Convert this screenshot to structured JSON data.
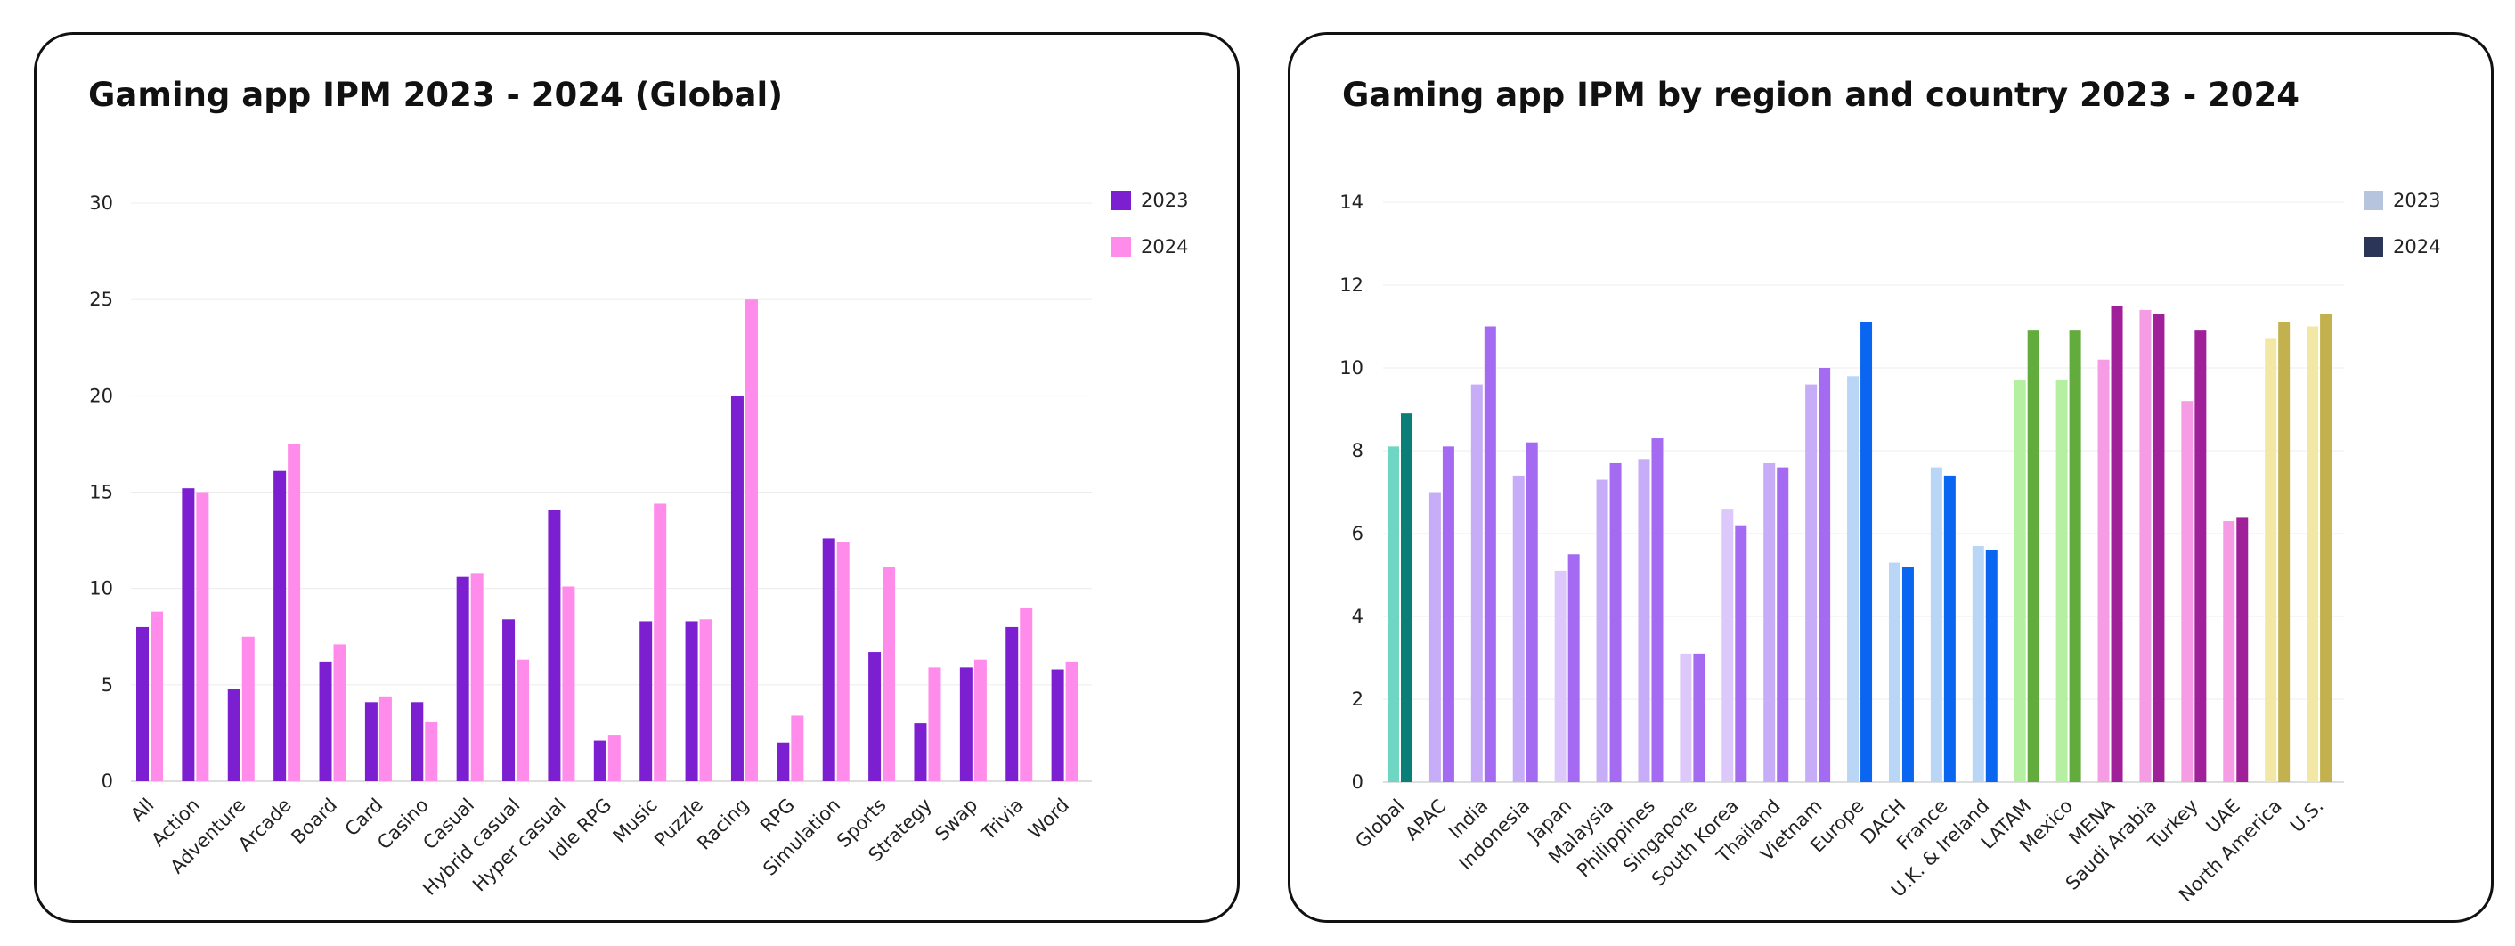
{
  "chart_data": [
    {
      "type": "bar",
      "title": "Gaming app IPM 2023 - 2024 (Global)",
      "xlabel": "",
      "ylabel": "",
      "ylim": [
        0,
        30
      ],
      "yticks": [
        0,
        5,
        10,
        15,
        20,
        25,
        30
      ],
      "grid": true,
      "legend_position": "top-right",
      "categories": [
        "All",
        "Action",
        "Adventure",
        "Arcade",
        "Board",
        "Card",
        "Casino",
        "Casual",
        "Hybrid casual",
        "Hyper casual",
        "Idle RPG",
        "Music",
        "Puzzle",
        "Racing",
        "RPG",
        "Simulation",
        "Sports",
        "Strategy",
        "Swap",
        "Trivia",
        "Word"
      ],
      "series": [
        {
          "name": "2023",
          "color": "#7B1FD1",
          "values": [
            8.0,
            15.2,
            4.8,
            16.1,
            6.2,
            4.1,
            4.1,
            10.6,
            8.4,
            14.1,
            2.1,
            8.3,
            8.3,
            20.0,
            2.0,
            12.6,
            6.7,
            3.0,
            5.9,
            8.0,
            5.8
          ]
        },
        {
          "name": "2024",
          "color": "#FF8BEA",
          "values": [
            8.8,
            15.0,
            7.5,
            17.5,
            7.1,
            4.4,
            3.1,
            10.8,
            6.3,
            10.1,
            2.4,
            14.4,
            8.4,
            25.0,
            3.4,
            12.4,
            11.1,
            5.9,
            6.3,
            9.0,
            6.2
          ]
        }
      ]
    },
    {
      "type": "bar",
      "title": "Gaming app IPM by region and country  2023 - 2024",
      "xlabel": "",
      "ylabel": "",
      "ylim": [
        0,
        14
      ],
      "yticks": [
        0,
        2,
        4,
        6,
        8,
        10,
        12,
        14
      ],
      "grid": true,
      "legend_position": "top-right",
      "legend": [
        {
          "name": "2023",
          "color": "#B7C4DE"
        },
        {
          "name": "2024",
          "color": "#2B3558"
        }
      ],
      "categories": [
        "Global",
        "APAC",
        "India",
        "Indonesia",
        "Japan",
        "Malaysia",
        "Philippines",
        "Singapore",
        "South Korea",
        "Thailand",
        "Vietnam",
        "Europe",
        "DACH",
        "France",
        "U.K. & Ireland",
        "LATAM",
        "Mexico",
        "MENA",
        "Saudi Arabia",
        "Turkey",
        "UAE",
        "North America",
        "U.S."
      ],
      "series": [
        {
          "name": "2023",
          "values": [
            8.1,
            7.0,
            9.6,
            7.4,
            5.1,
            7.3,
            7.8,
            3.1,
            6.6,
            7.7,
            9.6,
            9.8,
            5.3,
            7.6,
            5.7,
            9.7,
            9.7,
            10.2,
            11.4,
            9.2,
            6.3,
            10.7,
            11.0
          ]
        },
        {
          "name": "2024",
          "values": [
            8.9,
            8.1,
            11.0,
            8.2,
            5.5,
            7.7,
            8.3,
            3.1,
            6.2,
            7.6,
            10.0,
            11.1,
            5.2,
            7.4,
            5.6,
            10.9,
            10.9,
            11.5,
            11.3,
            10.9,
            6.4,
            11.1,
            11.3
          ]
        }
      ],
      "category_colors": [
        [
          "#6FD6C4",
          "#0A7F78"
        ],
        [
          "#C7ACF7",
          "#A46AF2"
        ],
        [
          "#C7ACF7",
          "#A46AF2"
        ],
        [
          "#C7ACF7",
          "#A46AF2"
        ],
        [
          "#DCC8FA",
          "#A46AF2"
        ],
        [
          "#C7ACF7",
          "#A46AF2"
        ],
        [
          "#C7ACF7",
          "#A46AF2"
        ],
        [
          "#DCC8FA",
          "#A46AF2"
        ],
        [
          "#DCC8FA",
          "#A46AF2"
        ],
        [
          "#C7ACF7",
          "#A46AF2"
        ],
        [
          "#C7ACF7",
          "#A46AF2"
        ],
        [
          "#B9D6F7",
          "#0A66F0"
        ],
        [
          "#B9D6F7",
          "#0A66F0"
        ],
        [
          "#B9D6F7",
          "#0A66F0"
        ],
        [
          "#B9D6F7",
          "#0A66F0"
        ],
        [
          "#B5F0A2",
          "#62AC3D"
        ],
        [
          "#B5F0A2",
          "#62AC3D"
        ],
        [
          "#F59CE4",
          "#A0209A"
        ],
        [
          "#F59CE4",
          "#A0209A"
        ],
        [
          "#F59CE4",
          "#A0209A"
        ],
        [
          "#F59CE4",
          "#A0209A"
        ],
        [
          "#F3E7A6",
          "#C3B14D"
        ],
        [
          "#F3E7A6",
          "#C3B14D"
        ]
      ]
    }
  ]
}
